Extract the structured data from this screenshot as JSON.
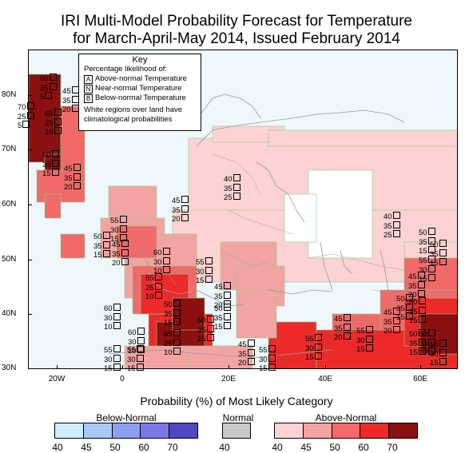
{
  "title_line1": "IRI Multi-Model Probability Forecast for Temperature",
  "title_line2": "for March-April-May 2014, Issued February 2014",
  "key": {
    "title": "Key",
    "subtitle": "Percentage likelihood of:",
    "rows": [
      {
        "letter": "A",
        "label": "Above-normal Temperature"
      },
      {
        "letter": "N",
        "label": "Near-normal Temperature"
      },
      {
        "letter": "B",
        "label": "Below-normal Temperature"
      }
    ],
    "note_line1": "White regions over land have",
    "note_line2": "climatological probabilities"
  },
  "lat_labels": [
    "80N",
    "70N",
    "60N",
    "50N",
    "40N",
    "30N"
  ],
  "lon_labels": [
    "20W",
    "0",
    "20E",
    "40E",
    "60E"
  ],
  "legend": {
    "title": "Probability (%) of Most Likely Category",
    "below_label": "Below-Normal",
    "normal_label": "Normal",
    "above_label": "Above-Normal",
    "below_colors": [
      "#cdeefa",
      "#a9c8f6",
      "#8e9ff0",
      "#7a78e8",
      "#5048c0"
    ],
    "normal_color": "#c8c8c8",
    "above_colors": [
      "#fcd2d2",
      "#f3a3a3",
      "#f06a6a",
      "#ec2a2a",
      "#8b1010"
    ],
    "below_ticks": [
      "40",
      "45",
      "50",
      "60",
      "70"
    ],
    "normal_ticks": [
      "40"
    ],
    "above_ticks": [
      "40",
      "45",
      "50",
      "60",
      "70"
    ]
  },
  "prob_labels": [
    {
      "a": "60",
      "n": "35",
      "b": "5"
    },
    {
      "a": "45",
      "n": "35",
      "b": "20"
    },
    {
      "a": "70",
      "n": "25",
      "b": "5"
    },
    {
      "a": "65",
      "n": "25",
      "b": "10"
    },
    {
      "a": "50",
      "n": "35",
      "b": "15"
    },
    {
      "a": "45",
      "n": "35",
      "b": "20"
    },
    {
      "a": "40",
      "n": "35",
      "b": "25"
    },
    {
      "a": "45",
      "n": "35",
      "b": "20"
    },
    {
      "a": "55",
      "n": "30",
      "b": "15"
    },
    {
      "a": "50",
      "n": "35",
      "b": "15"
    },
    {
      "a": "45",
      "n": "35",
      "b": "20"
    },
    {
      "a": "60",
      "n": "30",
      "b": "10"
    },
    {
      "a": "65",
      "n": "25",
      "b": "10"
    },
    {
      "a": "55",
      "n": "30",
      "b": "15"
    },
    {
      "a": "50",
      "n": "35",
      "b": "15"
    },
    {
      "a": "45",
      "n": "35",
      "b": "20"
    },
    {
      "a": "40",
      "n": "35",
      "b": "25"
    },
    {
      "a": "50",
      "n": "35",
      "b": "15"
    },
    {
      "a": "55",
      "n": "30",
      "b": "15"
    },
    {
      "a": "45",
      "n": "35",
      "b": "20"
    },
    {
      "a": "50",
      "n": "35",
      "b": "15"
    },
    {
      "a": "60",
      "n": "30",
      "b": "10"
    },
    {
      "a": "50",
      "n": "35",
      "b": "15"
    },
    {
      "a": "60",
      "n": "30",
      "b": "10"
    },
    {
      "a": "65",
      "n": "25",
      "b": "10"
    },
    {
      "a": "50",
      "n": "35",
      "b": "15"
    },
    {
      "a": "55",
      "n": "30",
      "b": "15"
    },
    {
      "a": "55",
      "n": "30",
      "b": "15"
    },
    {
      "a": "45",
      "n": "35",
      "b": "20"
    },
    {
      "a": "55",
      "n": "30",
      "b": "15"
    },
    {
      "a": "55",
      "n": "30",
      "b": "15"
    },
    {
      "a": "45",
      "n": "35",
      "b": "20"
    },
    {
      "a": "50",
      "n": "35",
      "b": "15"
    },
    {
      "a": "45",
      "n": "35",
      "b": "20"
    },
    {
      "a": "50",
      "n": "35",
      "b": "15"
    },
    {
      "a": "55",
      "n": "30",
      "b": "15"
    },
    {
      "a": "60",
      "n": "30",
      "b": "10"
    },
    {
      "a": "50",
      "n": "35",
      "b": "15"
    },
    {
      "a": "55",
      "n": "30",
      "b": "15"
    }
  ]
}
